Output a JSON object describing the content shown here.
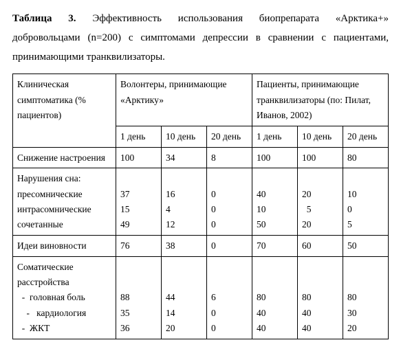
{
  "caption": {
    "label_bold": "Таблица 3.",
    "text": " Эффективность использования биопрепарата «Арктика+» добровольцами (n=200) с симптомами депрессии в сравнении с пациентами, принимающими транквилизаторы."
  },
  "header": {
    "row_label": "Клиническая симптоматика (% пациентов)",
    "group_a": "Волонтеры, принимающие «Арктику»",
    "group_b": "Пациенты, принимающие транквилизаторы (по: Пилат, Иванов, 2002)",
    "sub": {
      "d1a": "1 день",
      "d10a": "10 день",
      "d20a": "20 день",
      "d1b": "1 день",
      "d10b": "10 день",
      "d20b": "20 день"
    }
  },
  "rows": {
    "mood": {
      "label": "Снижение настроения",
      "a1": "100",
      "a10": "34",
      "a20": "8",
      "b1": "100",
      "b10": "100",
      "b20": "80"
    },
    "sleep": {
      "label_l0": "Нарушения сна:",
      "label_l1": "пресомнические",
      "label_l2": "интрасомнические",
      "label_l3": "сочетанные",
      "a1_l0": "",
      "a1_l1": "37",
      "a1_l2": "15",
      "a1_l3": "49",
      "a10_l0": "",
      "a10_l1": "16",
      "a10_l2": "4",
      "a10_l3": "12",
      "a20_l0": "",
      "a20_l1": "0",
      "a20_l2": "0",
      "a20_l3": "0",
      "b1_l0": "",
      "b1_l1": "40",
      "b1_l2": "10",
      "b1_l3": "50",
      "b10_l0": "",
      "b10_l1": "20",
      "b10_l2": "  5",
      "b10_l3": "20",
      "b20_l0": "",
      "b20_l1": "10",
      "b20_l2": "0",
      "b20_l3": "5"
    },
    "guilt": {
      "label": "Идеи виновности",
      "a1": "76",
      "a10": "38",
      "a20": "0",
      "b1": "70",
      "b10": "60",
      "b20": "50"
    },
    "somatic": {
      "label_l0": "Соматические",
      "label_l1": "расстройства",
      "label_l2": "  -  головная боль",
      "label_l3": "    -   кардиология",
      "label_l4": "  -  ЖКТ",
      "a1_l2": "88",
      "a1_l3": "35",
      "a1_l4": "36",
      "a10_l2": "44",
      "a10_l3": "14",
      "a10_l4": "20",
      "a20_l2": "6",
      "a20_l3": "0",
      "a20_l4": "0",
      "b1_l2": "80",
      "b1_l3": "40",
      "b1_l4": "40",
      "b10_l2": "80",
      "b10_l3": "40",
      "b10_l4": "40",
      "b20_l2": "80",
      "b20_l3": "30",
      "b20_l4": "20"
    }
  }
}
